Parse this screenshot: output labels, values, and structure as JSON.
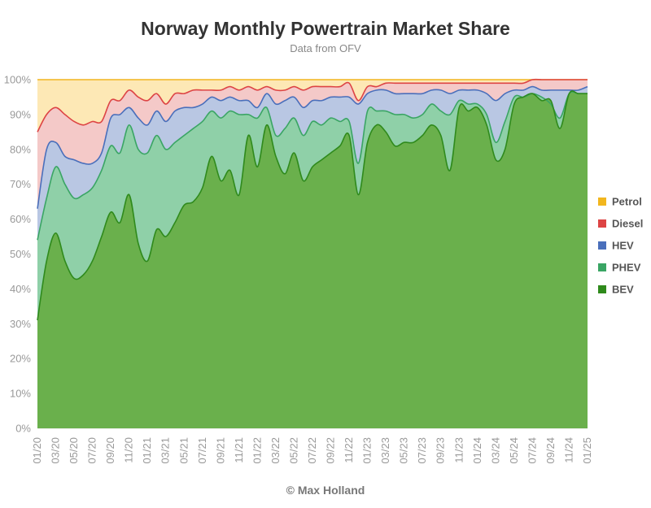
{
  "chart_data": {
    "type": "area",
    "stacked": true,
    "title": "Norway Monthly Powertrain Market Share",
    "subtitle": "Data from OFV",
    "credit": "© Max Holland",
    "xlabel": "",
    "ylabel": "",
    "ylim": [
      0,
      100
    ],
    "y_ticks": [
      "0%",
      "10%",
      "20%",
      "30%",
      "40%",
      "50%",
      "60%",
      "70%",
      "80%",
      "90%",
      "100%"
    ],
    "x_tick_labels": [
      "01/20",
      "03/20",
      "05/20",
      "07/20",
      "09/20",
      "11/20",
      "01/21",
      "03/21",
      "05/21",
      "07/21",
      "09/21",
      "11/21",
      "01/22",
      "03/22",
      "05/22",
      "07/22",
      "09/22",
      "11/22",
      "01/23",
      "03/23",
      "05/23",
      "07/23",
      "09/23",
      "11/23",
      "01/24",
      "03/24",
      "05/24",
      "07/24",
      "09/24",
      "11/24",
      "01/25"
    ],
    "grid": true,
    "legend_position": "right",
    "categories": [
      "01/20",
      "02/20",
      "03/20",
      "04/20",
      "05/20",
      "06/20",
      "07/20",
      "08/20",
      "09/20",
      "10/20",
      "11/20",
      "12/20",
      "01/21",
      "02/21",
      "03/21",
      "04/21",
      "05/21",
      "06/21",
      "07/21",
      "08/21",
      "09/21",
      "10/21",
      "11/21",
      "12/21",
      "01/22",
      "02/22",
      "03/22",
      "04/22",
      "05/22",
      "06/22",
      "07/22",
      "08/22",
      "09/22",
      "10/22",
      "11/22",
      "12/22",
      "01/23",
      "02/23",
      "03/23",
      "04/23",
      "05/23",
      "06/23",
      "07/23",
      "08/23",
      "09/23",
      "10/23",
      "11/23",
      "12/23",
      "01/24",
      "02/24",
      "03/24",
      "04/24",
      "05/24",
      "06/24",
      "07/24",
      "08/24",
      "09/24",
      "10/24",
      "11/24",
      "12/24",
      "01/25"
    ],
    "series_cumulative_top": [
      {
        "name": "BEV",
        "color": "#6ab04c",
        "line": "#2f8a1c",
        "values": [
          31,
          48,
          56,
          48,
          43,
          44,
          48,
          55,
          62,
          59,
          67,
          53,
          48,
          57,
          55,
          59,
          64,
          65,
          69,
          78,
          71,
          74,
          67,
          84,
          75,
          87,
          78,
          73,
          79,
          71,
          75,
          77,
          79,
          81,
          84,
          67,
          82,
          87,
          85,
          81,
          82,
          82,
          84,
          87,
          84,
          74,
          92,
          91,
          92,
          87,
          77,
          80,
          93,
          95,
          96,
          94,
          94,
          86,
          96,
          96,
          96
        ]
      },
      {
        "name": "PHEV",
        "color": "#8fd0a8",
        "line": "#3aa564",
        "values": [
          54,
          66,
          75,
          70,
          66,
          67,
          69,
          74,
          81,
          79,
          87,
          80,
          79,
          84,
          80,
          82,
          84,
          86,
          88,
          91,
          89,
          91,
          90,
          90,
          89,
          92,
          84,
          86,
          89,
          84,
          88,
          87,
          89,
          88,
          88,
          76,
          91,
          91,
          91,
          90,
          90,
          89,
          90,
          93,
          91,
          90,
          94,
          93,
          93,
          90,
          82,
          88,
          95,
          95,
          96,
          95,
          93,
          89,
          96,
          96,
          96
        ]
      },
      {
        "name": "HEV",
        "color": "#b9c7e3",
        "line": "#4a6fbb",
        "values": [
          63,
          80,
          82,
          78,
          77,
          76,
          76,
          79,
          89,
          90,
          92,
          89,
          87,
          91,
          88,
          91,
          92,
          92,
          93,
          95,
          94,
          95,
          94,
          94,
          92,
          96,
          93,
          94,
          95,
          92,
          94,
          94,
          95,
          95,
          95,
          93,
          96,
          97,
          97,
          96,
          96,
          96,
          96,
          97,
          97,
          96,
          97,
          97,
          97,
          96,
          94,
          96,
          97,
          97,
          98,
          97,
          97,
          97,
          97,
          97,
          98
        ]
      },
      {
        "name": "Diesel",
        "color": "#f4c9c8",
        "line": "#dd4444",
        "values": [
          85,
          90,
          92,
          90,
          88,
          87,
          88,
          88,
          94,
          94,
          97,
          95,
          94,
          96,
          93,
          96,
          96,
          97,
          97,
          97,
          97,
          98,
          97,
          98,
          97,
          98,
          97,
          97,
          98,
          97,
          98,
          98,
          98,
          98,
          99,
          94,
          98,
          98,
          99,
          99,
          99,
          99,
          99,
          99,
          99,
          99,
          99,
          99,
          99,
          99,
          99,
          99,
          99,
          99,
          100,
          100,
          100,
          100,
          100,
          100,
          100
        ]
      },
      {
        "name": "Petrol",
        "color": "#fde8b5",
        "line": "#f2b61e",
        "values": [
          100,
          100,
          100,
          100,
          100,
          100,
          100,
          100,
          100,
          100,
          100,
          100,
          100,
          100,
          100,
          100,
          100,
          100,
          100,
          100,
          100,
          100,
          100,
          100,
          100,
          100,
          100,
          100,
          100,
          100,
          100,
          100,
          100,
          100,
          100,
          100,
          100,
          100,
          100,
          100,
          100,
          100,
          100,
          100,
          100,
          100,
          100,
          100,
          100,
          100,
          100,
          100,
          100,
          100,
          100,
          100,
          100,
          100,
          100,
          100,
          100
        ]
      }
    ]
  }
}
